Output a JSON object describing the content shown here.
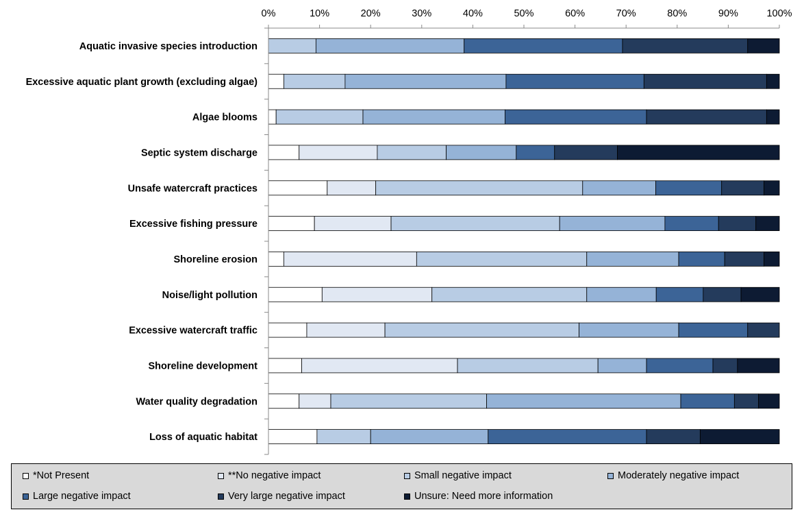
{
  "chart_data": {
    "type": "bar",
    "orientation": "horizontal",
    "stacking": "percent",
    "categories": [
      "Aquatic invasive species introduction",
      "Excessive aquatic plant growth (excluding algae)",
      "Algae blooms",
      "Septic system discharge",
      "Unsafe watercraft practices",
      "Excessive fishing pressure",
      "Shoreline erosion",
      "Noise/light pollution",
      "Excessive watercraft traffic",
      "Shoreline development",
      "Water quality degradation",
      "Loss of aquatic habitat"
    ],
    "series": [
      {
        "name": "*Not Present",
        "color": "#ffffff",
        "values": [
          0,
          3,
          1.5,
          6,
          11.5,
          9,
          3,
          10.5,
          7.5,
          6.5,
          6,
          9.5
        ]
      },
      {
        "name": "**No negative impact",
        "color": "#e1e8f3",
        "values": [
          0,
          0,
          0,
          15.3,
          9.5,
          15,
          26,
          21.5,
          15.3,
          30.5,
          6.2,
          0
        ]
      },
      {
        "name": "Small negative impact",
        "color": "#b8cce4",
        "values": [
          9.3,
          12,
          17,
          13.5,
          40.5,
          33,
          33.3,
          30.3,
          38,
          27.5,
          30.5,
          10.5
        ]
      },
      {
        "name": "Moderately negative impact",
        "color": "#95b3d7",
        "values": [
          29,
          31.5,
          27.8,
          13.7,
          14.3,
          20.6,
          18,
          13.6,
          19.5,
          9.5,
          38,
          23
        ]
      },
      {
        "name": "Large negative impact",
        "color": "#3c6497",
        "values": [
          31,
          27,
          27.7,
          7.5,
          12.9,
          10.5,
          9,
          9.2,
          13.5,
          13,
          10.5,
          31
        ]
      },
      {
        "name": "Very large negative impact",
        "color": "#243b5c",
        "values": [
          24.5,
          24,
          23.5,
          12.3,
          8.3,
          7.3,
          7.7,
          7.4,
          6.2,
          4.8,
          4.7,
          10.5
        ]
      },
      {
        "name": "Unsure: Need more information",
        "color": "#0d1b33",
        "values": [
          6.2,
          2.5,
          2.5,
          31.7,
          3,
          4.6,
          3,
          7.5,
          0,
          8.2,
          4.1,
          15.5
        ]
      }
    ],
    "x_axis": {
      "ticks": [
        "0%",
        "10%",
        "20%",
        "30%",
        "40%",
        "50%",
        "60%",
        "70%",
        "80%",
        "90%",
        "100%"
      ],
      "range": [
        0,
        100
      ],
      "position": "top"
    },
    "title": "",
    "xlabel": "",
    "ylabel": "",
    "grid": false,
    "legend_position": "bottom"
  }
}
